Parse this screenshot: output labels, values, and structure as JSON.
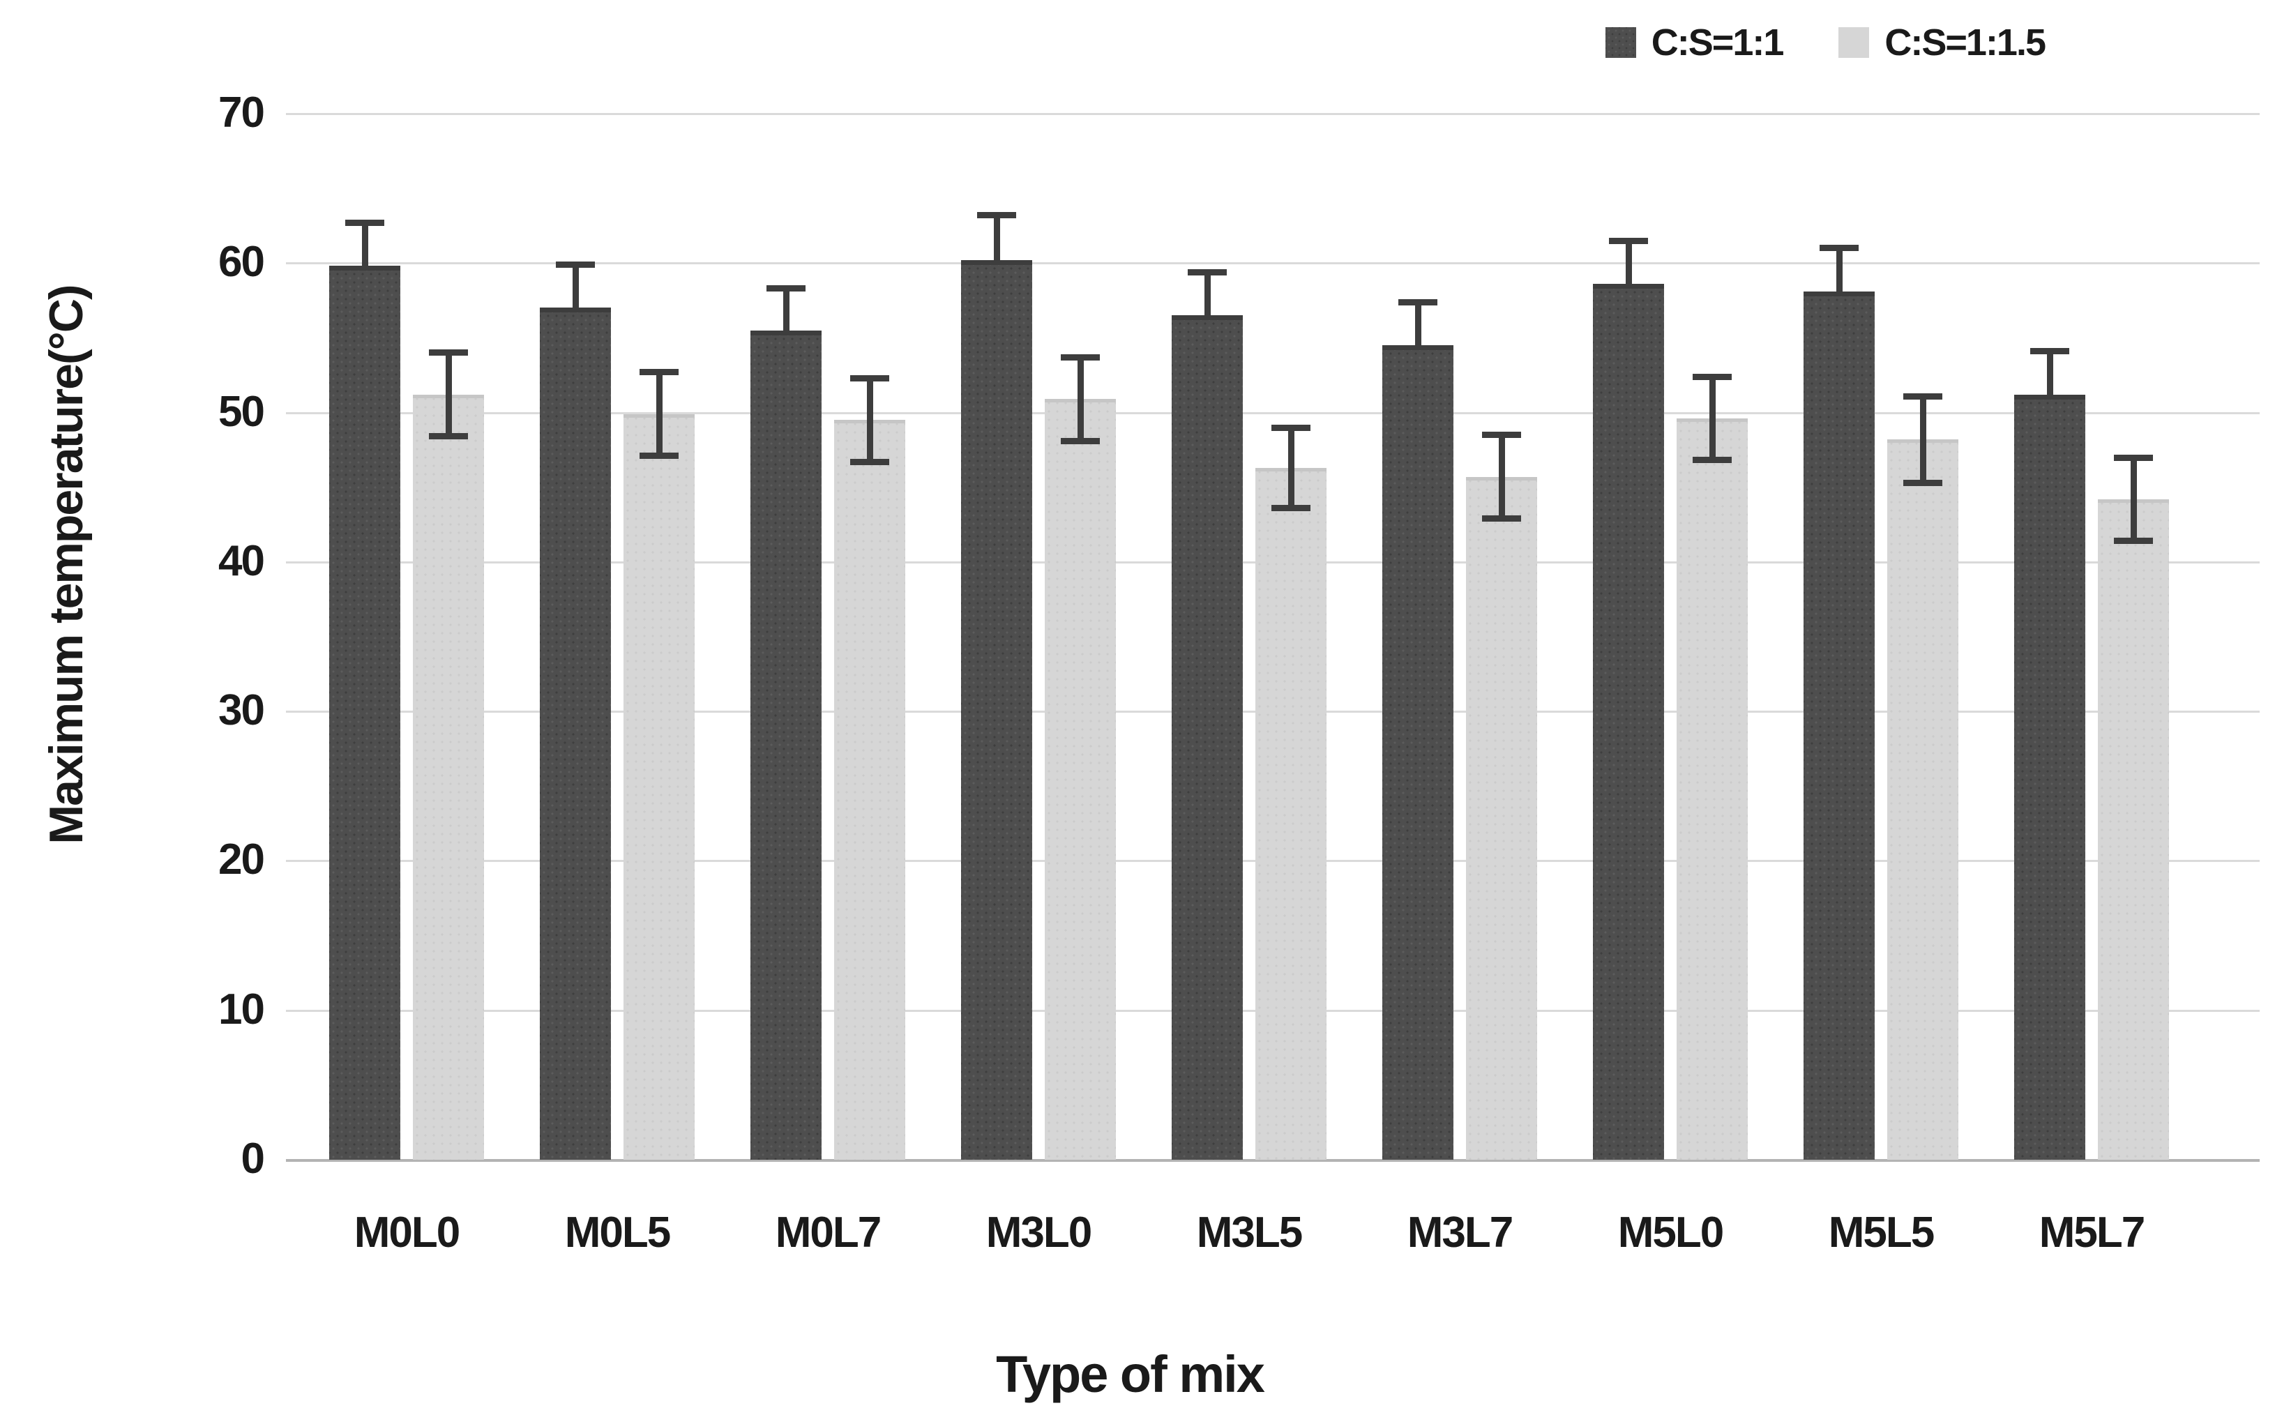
{
  "chart_data": {
    "type": "bar",
    "title": "",
    "xlabel": "Type of mix",
    "ylabel": "Maximum temperature(°C)",
    "categories": [
      "M0L0",
      "M0L5",
      "M0L7",
      "M3L0",
      "M3L5",
      "M3L7",
      "M5L0",
      "M5L5",
      "M5L7"
    ],
    "series": [
      {
        "name": "C:S=1:1",
        "color": "#4e4e4e",
        "values": [
          59.8,
          57.0,
          55.5,
          60.2,
          56.5,
          54.5,
          58.6,
          58.1,
          51.2
        ],
        "error": [
          3.1,
          3.1,
          3.0,
          3.2,
          3.1,
          3.1,
          3.1,
          3.1,
          3.1
        ]
      },
      {
        "name": "C:S=1:1.5",
        "color": "#d6d6d6",
        "values": [
          51.2,
          49.9,
          49.5,
          50.9,
          46.3,
          45.7,
          49.6,
          48.2,
          44.2
        ],
        "error": [
          3.0,
          3.0,
          3.0,
          3.0,
          2.9,
          3.0,
          3.0,
          3.1,
          3.0
        ]
      }
    ],
    "ylim": [
      0,
      70
    ],
    "yticks": [
      0,
      10,
      20,
      30,
      40,
      50,
      60,
      70
    ],
    "grid": true,
    "legend_position": "top-right",
    "error_bar_color": "#3d3d3d",
    "gridline_color": "#dadada"
  }
}
